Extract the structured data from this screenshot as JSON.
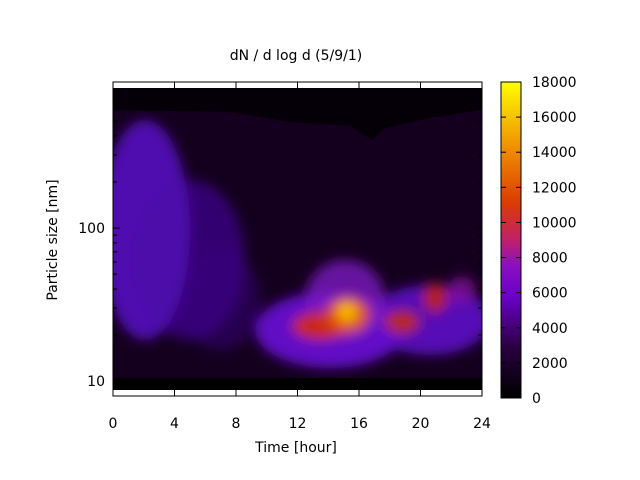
{
  "chart_data": {
    "type": "heatmap",
    "title": "dN / d log d (5/9/1)",
    "xlabel": "Time [hour]",
    "ylabel": "Particle size [nm]",
    "x_range": [
      0,
      24
    ],
    "x_ticks": [
      0,
      4,
      8,
      12,
      16,
      20,
      24
    ],
    "y_scale": "log",
    "y_range": [
      8,
      900
    ],
    "y_ticks": [
      10,
      100
    ],
    "colorbar": {
      "palette": "black-purple-red-orange-yellow",
      "range": [
        0,
        18000
      ],
      "ticks": [
        0,
        2000,
        4000,
        6000,
        8000,
        10000,
        12000,
        14000,
        16000,
        18000
      ]
    },
    "features": [
      {
        "t_start": 0,
        "t_end": 9,
        "size_center_nm": 100,
        "peak_value": 5000
      },
      {
        "t_start": 11,
        "t_end": 17,
        "size_center_nm": 28,
        "peak_value": 16500
      },
      {
        "t_start": 17,
        "t_end": 24,
        "size_center_nm": 32,
        "peak_value": 10500
      }
    ]
  }
}
